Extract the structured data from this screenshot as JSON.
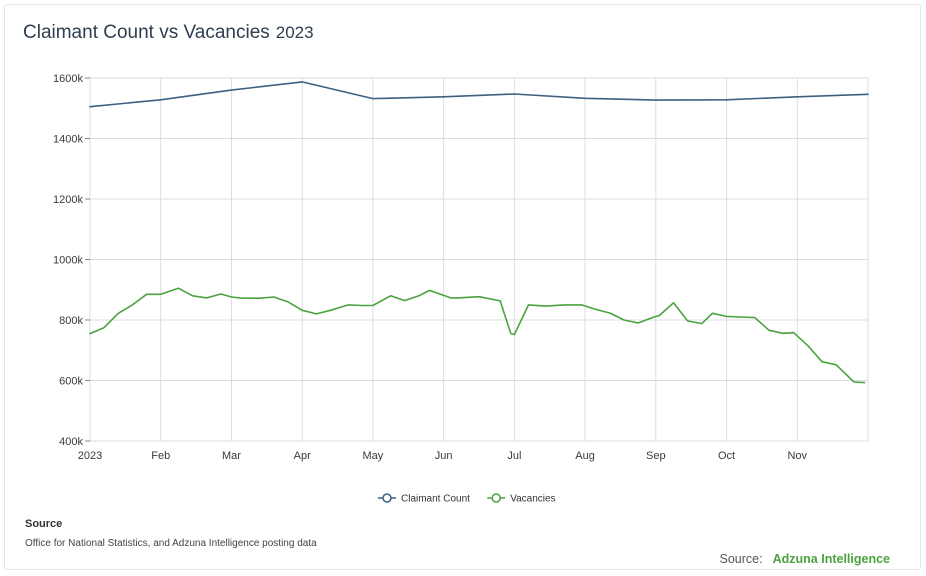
{
  "title": "Claimant Count vs Vacancies",
  "title_year": "2023",
  "source_heading": "Source",
  "source_text": "Office for National Statistics, and Adzuna Intelligence posting data",
  "credit_label": "Source:",
  "credit_brand": "Adzuna Intelligence",
  "colors": {
    "claimant": "#3f5f80",
    "vacancies": "#4aa33e",
    "grid": "#d9dde2",
    "brand": "#4aa33e"
  },
  "chart_data": {
    "type": "line",
    "title": "Claimant Count vs Vacancies",
    "xlabel": "",
    "ylabel": "",
    "xlim": [
      0,
      11
    ],
    "ylim": [
      400,
      1600
    ],
    "y_unit": "k",
    "x_ticks": [
      {
        "pos": 0,
        "label": "2023"
      },
      {
        "pos": 1,
        "label": "Feb"
      },
      {
        "pos": 2,
        "label": "Mar"
      },
      {
        "pos": 3,
        "label": "Apr"
      },
      {
        "pos": 4,
        "label": "May"
      },
      {
        "pos": 5,
        "label": "Jun"
      },
      {
        "pos": 6,
        "label": "Jul"
      },
      {
        "pos": 7,
        "label": "Aug"
      },
      {
        "pos": 8,
        "label": "Sep"
      },
      {
        "pos": 9,
        "label": "Oct"
      },
      {
        "pos": 10,
        "label": "Nov"
      }
    ],
    "y_ticks": [
      {
        "value": 400,
        "label": "400k"
      },
      {
        "value": 600,
        "label": "600k"
      },
      {
        "value": 800,
        "label": "800k"
      },
      {
        "value": 1000,
        "label": "1000k"
      },
      {
        "value": 1200,
        "label": "1200k"
      },
      {
        "value": 1400,
        "label": "1400k"
      },
      {
        "value": 1600,
        "label": "1600k"
      }
    ],
    "grid": true,
    "legend_position": "bottom-center",
    "series": [
      {
        "name": "Claimant Count",
        "color": "#3f5f80",
        "x": [
          0,
          1,
          2,
          3,
          4,
          5,
          6,
          7,
          8,
          9,
          10,
          11
        ],
        "y": [
          1505,
          1528,
          1560,
          1587,
          1532,
          1538,
          1547,
          1533,
          1527,
          1528,
          1538,
          1546
        ]
      },
      {
        "name": "Vacancies",
        "color": "#4aa33e",
        "x": [
          0,
          0.2,
          0.4,
          0.6,
          0.8,
          1.0,
          1.25,
          1.45,
          1.65,
          1.85,
          2.0,
          2.15,
          2.4,
          2.6,
          2.8,
          3.0,
          3.2,
          3.4,
          3.65,
          3.85,
          4.0,
          4.25,
          4.45,
          4.65,
          4.8,
          5.1,
          5.2,
          5.5,
          5.8,
          5.95,
          6.0,
          6.2,
          6.45,
          6.7,
          6.95,
          7.15,
          7.35,
          7.55,
          7.75,
          7.95,
          8.05,
          8.25,
          8.45,
          8.65,
          8.8,
          9.0,
          9.2,
          9.4,
          9.6,
          9.8,
          9.95,
          10.15,
          10.35,
          10.55,
          10.8,
          10.95
        ],
        "y": [
          755,
          775,
          822,
          850,
          885,
          885,
          905,
          880,
          873,
          886,
          876,
          872,
          872,
          876,
          860,
          832,
          820,
          832,
          850,
          848,
          848,
          880,
          864,
          880,
          898,
          873,
          873,
          877,
          863,
          755,
          752,
          850,
          846,
          850,
          850,
          835,
          823,
          800,
          790,
          808,
          815,
          857,
          797,
          788,
          822,
          812,
          810,
          808,
          766,
          756,
          758,
          715,
          662,
          652,
          595,
          593
        ]
      }
    ]
  }
}
